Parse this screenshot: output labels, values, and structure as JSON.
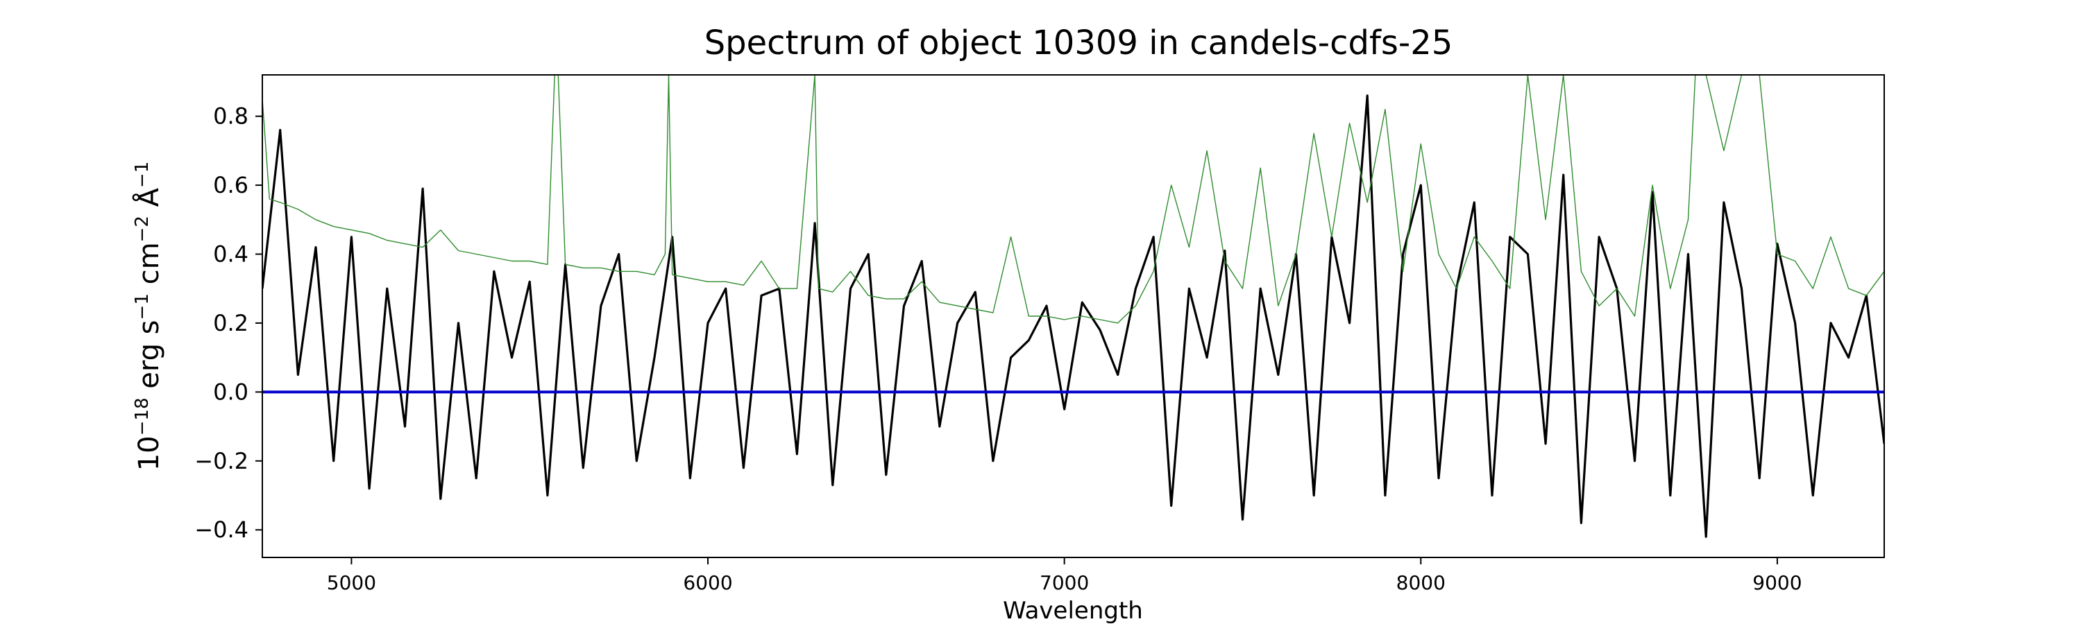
{
  "chart_data": {
    "type": "line",
    "title": "Spectrum of object 10309 in candels-cdfs-25",
    "xlabel": "Wavelength",
    "ylabel_html": "10<tspan baseline-shift='super' font-size='26'>−18</tspan> erg s<tspan baseline-shift='super' font-size='26'>−1</tspan> cm<tspan baseline-shift='super' font-size='26'>−2</tspan> Å<tspan baseline-shift='super' font-size='26'>−1</tspan>",
    "xlim": [
      4750,
      9300
    ],
    "ylim": [
      -0.48,
      0.92
    ],
    "x_ticks": [
      5000,
      6000,
      7000,
      8000,
      9000
    ],
    "y_ticks": [
      -0.4,
      -0.2,
      0.0,
      0.2,
      0.4,
      0.6,
      0.8
    ],
    "y_tick_labels": [
      "−0.4",
      "−0.2",
      "0.0",
      "0.2",
      "0.4",
      "0.6",
      "0.8"
    ],
    "grid": false,
    "series": [
      {
        "name": "",
        "color": "#000000",
        "x": [
          4750,
          4800,
          4850,
          4900,
          4950,
          5000,
          5050,
          5100,
          5150,
          5200,
          5250,
          5300,
          5350,
          5400,
          5450,
          5500,
          5550,
          5600,
          5650,
          5700,
          5750,
          5800,
          5850,
          5900,
          5950,
          6000,
          6050,
          6100,
          6150,
          6200,
          6250,
          6300,
          6350,
          6400,
          6450,
          6500,
          6550,
          6600,
          6650,
          6700,
          6750,
          6800,
          6850,
          6900,
          6950,
          7000,
          7050,
          7100,
          7150,
          7200,
          7250,
          7300,
          7350,
          7400,
          7450,
          7500,
          7550,
          7600,
          7650,
          7700,
          7750,
          7800,
          7850,
          7900,
          7950,
          8000,
          8050,
          8100,
          8150,
          8200,
          8250,
          8300,
          8350,
          8400,
          8450,
          8500,
          8550,
          8600,
          8650,
          8700,
          8750,
          8800,
          8850,
          8900,
          8950,
          9000,
          9050,
          9100,
          9150,
          9200,
          9250,
          9300
        ],
        "y": [
          0.3,
          0.76,
          0.05,
          0.42,
          -0.2,
          0.45,
          -0.28,
          0.3,
          -0.1,
          0.59,
          -0.31,
          0.2,
          -0.25,
          0.35,
          0.1,
          0.32,
          -0.3,
          0.37,
          -0.22,
          0.25,
          0.4,
          -0.2,
          0.1,
          0.45,
          -0.25,
          0.2,
          0.3,
          -0.22,
          0.28,
          0.3,
          -0.18,
          0.49,
          -0.27,
          0.3,
          0.4,
          -0.24,
          0.25,
          0.38,
          -0.1,
          0.2,
          0.29,
          -0.2,
          0.1,
          0.15,
          0.25,
          -0.05,
          0.26,
          0.18,
          0.05,
          0.3,
          0.45,
          -0.33,
          0.3,
          0.1,
          0.41,
          -0.37,
          0.3,
          0.05,
          0.4,
          -0.3,
          0.45,
          0.2,
          0.86,
          -0.3,
          0.4,
          0.6,
          -0.25,
          0.3,
          0.55,
          -0.3,
          0.45,
          0.4,
          -0.15,
          0.63,
          -0.38,
          0.45,
          0.3,
          -0.2,
          0.58,
          -0.3,
          0.4,
          -0.42,
          0.55,
          0.3,
          -0.25,
          0.43,
          0.2,
          -0.3,
          0.2,
          0.1,
          0.28,
          -0.15
        ]
      },
      {
        "name": "",
        "color": "#2e8b2e",
        "x": [
          4750,
          4770,
          4800,
          4850,
          4900,
          4950,
          5000,
          5050,
          5100,
          5150,
          5200,
          5250,
          5300,
          5350,
          5400,
          5450,
          5500,
          5550,
          5570,
          5580,
          5600,
          5650,
          5700,
          5750,
          5800,
          5850,
          5880,
          5890,
          5900,
          5950,
          6000,
          6050,
          6100,
          6150,
          6200,
          6250,
          6300,
          6310,
          6350,
          6400,
          6450,
          6500,
          6550,
          6600,
          6650,
          6700,
          6750,
          6800,
          6850,
          6900,
          6950,
          7000,
          7050,
          7100,
          7150,
          7200,
          7250,
          7300,
          7350,
          7400,
          7450,
          7500,
          7550,
          7600,
          7650,
          7700,
          7750,
          7800,
          7850,
          7900,
          7950,
          8000,
          8050,
          8100,
          8150,
          8200,
          8250,
          8300,
          8350,
          8400,
          8450,
          8500,
          8550,
          8600,
          8650,
          8700,
          8750,
          8770,
          8800,
          8850,
          8900,
          8950,
          9000,
          9050,
          9100,
          9150,
          9200,
          9250,
          9300
        ],
        "y": [
          0.85,
          0.56,
          0.55,
          0.53,
          0.5,
          0.48,
          0.47,
          0.46,
          0.44,
          0.43,
          0.42,
          0.47,
          0.41,
          0.4,
          0.39,
          0.38,
          0.38,
          0.37,
          0.92,
          0.92,
          0.37,
          0.36,
          0.36,
          0.35,
          0.35,
          0.34,
          0.4,
          0.92,
          0.34,
          0.33,
          0.32,
          0.32,
          0.31,
          0.38,
          0.3,
          0.3,
          0.92,
          0.3,
          0.29,
          0.35,
          0.28,
          0.27,
          0.27,
          0.32,
          0.26,
          0.25,
          0.24,
          0.23,
          0.45,
          0.22,
          0.22,
          0.21,
          0.22,
          0.21,
          0.2,
          0.25,
          0.35,
          0.6,
          0.42,
          0.7,
          0.38,
          0.3,
          0.65,
          0.25,
          0.4,
          0.75,
          0.45,
          0.78,
          0.55,
          0.82,
          0.35,
          0.72,
          0.4,
          0.3,
          0.45,
          0.38,
          0.3,
          0.92,
          0.5,
          0.92,
          0.35,
          0.25,
          0.3,
          0.22,
          0.6,
          0.3,
          0.5,
          0.92,
          0.92,
          0.7,
          0.92,
          0.92,
          0.4,
          0.38,
          0.3,
          0.45,
          0.3,
          0.28,
          0.35
        ]
      },
      {
        "name": "",
        "color": "#0000cc",
        "x": [
          4750,
          9300
        ],
        "y": [
          0.0,
          0.0
        ]
      }
    ]
  }
}
